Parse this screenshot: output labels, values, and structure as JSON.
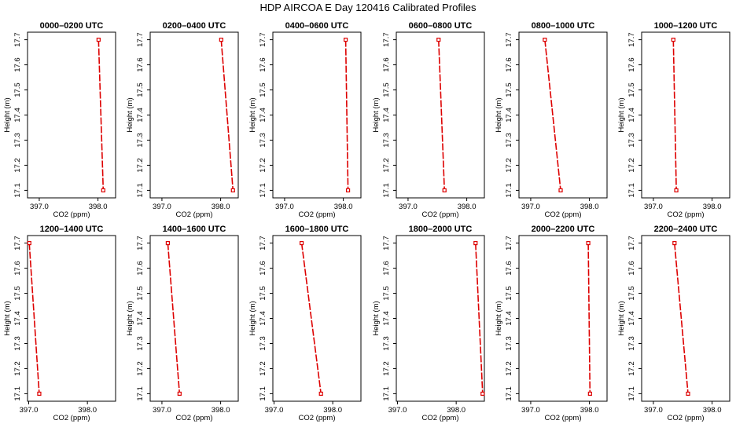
{
  "title": "HDP AIRCOA E  Day 120416  Calibrated Profiles",
  "chart_data": [
    {
      "type": "line",
      "title": "0000–0200 UTC",
      "xlabel": "CO2 (ppm)",
      "ylabel": "Height (m)",
      "xlim": [
        396.8,
        398.3
      ],
      "ylim": [
        17.07,
        17.73
      ],
      "x_ticks": [
        "397.0",
        "398.0"
      ],
      "y_ticks": [
        "17.1",
        "17.2",
        "17.3",
        "17.4",
        "17.5",
        "17.6",
        "17.7"
      ],
      "series": [
        {
          "x": [
            398.01,
            398.09
          ],
          "y": [
            17.7,
            17.1
          ]
        }
      ]
    },
    {
      "type": "line",
      "title": "0200–0400 UTC",
      "xlabel": "CO2 (ppm)",
      "ylabel": "Height (m)",
      "xlim": [
        396.8,
        398.3
      ],
      "ylim": [
        17.07,
        17.73
      ],
      "x_ticks": [
        "397.0",
        "398.0"
      ],
      "y_ticks": [
        "17.1",
        "17.2",
        "17.3",
        "17.4",
        "17.5",
        "17.6",
        "17.7"
      ],
      "series": [
        {
          "x": [
            398.01,
            398.21
          ],
          "y": [
            17.7,
            17.1
          ]
        }
      ]
    },
    {
      "type": "line",
      "title": "0400–0600 UTC",
      "xlabel": "CO2 (ppm)",
      "ylabel": "Height (m)",
      "xlim": [
        396.8,
        398.3
      ],
      "ylim": [
        17.07,
        17.73
      ],
      "x_ticks": [
        "397.0",
        "398.0"
      ],
      "y_ticks": [
        "17.1",
        "17.2",
        "17.3",
        "17.4",
        "17.5",
        "17.6",
        "17.7"
      ],
      "series": [
        {
          "x": [
            398.04,
            398.08
          ],
          "y": [
            17.7,
            17.1
          ]
        }
      ]
    },
    {
      "type": "line",
      "title": "0600–0800 UTC",
      "xlabel": "CO2 (ppm)",
      "ylabel": "Height (m)",
      "xlim": [
        396.8,
        398.3
      ],
      "ylim": [
        17.07,
        17.73
      ],
      "x_ticks": [
        "397.0",
        "398.0"
      ],
      "y_ticks": [
        "17.1",
        "17.2",
        "17.3",
        "17.4",
        "17.5",
        "17.6",
        "17.7"
      ],
      "series": [
        {
          "x": [
            397.52,
            397.62
          ],
          "y": [
            17.7,
            17.1
          ]
        }
      ]
    },
    {
      "type": "line",
      "title": "0800–1000 UTC",
      "xlabel": "CO2 (ppm)",
      "ylabel": "Height (m)",
      "xlim": [
        396.8,
        398.3
      ],
      "ylim": [
        17.07,
        17.73
      ],
      "x_ticks": [
        "397.0",
        "398.0"
      ],
      "y_ticks": [
        "17.1",
        "17.2",
        "17.3",
        "17.4",
        "17.5",
        "17.6",
        "17.7"
      ],
      "series": [
        {
          "x": [
            397.24,
            397.51
          ],
          "y": [
            17.7,
            17.1
          ]
        }
      ]
    },
    {
      "type": "line",
      "title": "1000–1200 UTC",
      "xlabel": "CO2 (ppm)",
      "ylabel": "Height (m)",
      "xlim": [
        396.8,
        398.3
      ],
      "ylim": [
        17.07,
        17.73
      ],
      "x_ticks": [
        "397.0",
        "398.0"
      ],
      "y_ticks": [
        "17.1",
        "17.2",
        "17.3",
        "17.4",
        "17.5",
        "17.6",
        "17.7"
      ],
      "series": [
        {
          "x": [
            397.34,
            397.39
          ],
          "y": [
            17.7,
            17.1
          ]
        }
      ]
    },
    {
      "type": "line",
      "title": "1200–1400 UTC",
      "xlabel": "CO2 (ppm)",
      "ylabel": "Height (m)",
      "xlim": [
        396.98,
        398.48
      ],
      "ylim": [
        17.07,
        17.73
      ],
      "x_ticks": [
        "397.0",
        "398.0"
      ],
      "y_ticks": [
        "17.1",
        "17.2",
        "17.3",
        "17.4",
        "17.5",
        "17.6",
        "17.7"
      ],
      "series": [
        {
          "x": [
            397.01,
            397.18
          ],
          "y": [
            17.7,
            17.1
          ]
        }
      ]
    },
    {
      "type": "line",
      "title": "1400–1600 UTC",
      "xlabel": "CO2 (ppm)",
      "ylabel": "Height (m)",
      "xlim": [
        396.8,
        398.3
      ],
      "ylim": [
        17.07,
        17.73
      ],
      "x_ticks": [
        "397.0",
        "398.0"
      ],
      "y_ticks": [
        "17.1",
        "17.2",
        "17.3",
        "17.4",
        "17.5",
        "17.6",
        "17.7"
      ],
      "series": [
        {
          "x": [
            397.1,
            397.3
          ],
          "y": [
            17.7,
            17.1
          ]
        }
      ]
    },
    {
      "type": "line",
      "title": "1600–1800 UTC",
      "xlabel": "CO2 (ppm)",
      "ylabel": "Height (m)",
      "xlim": [
        396.98,
        398.48
      ],
      "ylim": [
        17.07,
        17.73
      ],
      "x_ticks": [
        "397.0",
        "398.0"
      ],
      "y_ticks": [
        "17.1",
        "17.2",
        "17.3",
        "17.4",
        "17.5",
        "17.6",
        "17.7"
      ],
      "series": [
        {
          "x": [
            397.47,
            397.8
          ],
          "y": [
            17.7,
            17.1
          ]
        }
      ]
    },
    {
      "type": "line",
      "title": "1800–2000 UTC",
      "xlabel": "CO2 (ppm)",
      "ylabel": "Height (m)",
      "xlim": [
        396.98,
        398.48
      ],
      "ylim": [
        17.07,
        17.73
      ],
      "x_ticks": [
        "397.0",
        "398.0"
      ],
      "y_ticks": [
        "17.1",
        "17.2",
        "17.3",
        "17.4",
        "17.5",
        "17.6",
        "17.7"
      ],
      "series": [
        {
          "x": [
            398.33,
            398.45
          ],
          "y": [
            17.7,
            17.1
          ]
        }
      ]
    },
    {
      "type": "line",
      "title": "2000–2200 UTC",
      "xlabel": "CO2 (ppm)",
      "ylabel": "Height (m)",
      "xlim": [
        396.8,
        398.3
      ],
      "ylim": [
        17.07,
        17.73
      ],
      "x_ticks": [
        "397.0",
        "398.0"
      ],
      "y_ticks": [
        "17.1",
        "17.2",
        "17.3",
        "17.4",
        "17.5",
        "17.6",
        "17.7"
      ],
      "series": [
        {
          "x": [
            397.98,
            398.01
          ],
          "y": [
            17.7,
            17.1
          ]
        }
      ]
    },
    {
      "type": "line",
      "title": "2200–2400 UTC",
      "xlabel": "CO2 (ppm)",
      "ylabel": "Height (m)",
      "xlim": [
        396.8,
        398.3
      ],
      "ylim": [
        17.07,
        17.73
      ],
      "x_ticks": [
        "397.0",
        "398.0"
      ],
      "y_ticks": [
        "17.1",
        "17.2",
        "17.3",
        "17.4",
        "17.5",
        "17.6",
        "17.7"
      ],
      "series": [
        {
          "x": [
            397.36,
            397.59
          ],
          "y": [
            17.7,
            17.1
          ]
        }
      ]
    }
  ],
  "colors": {
    "series": "#dd0000",
    "marker_fill": "#ffffff",
    "axis": "#000000"
  }
}
